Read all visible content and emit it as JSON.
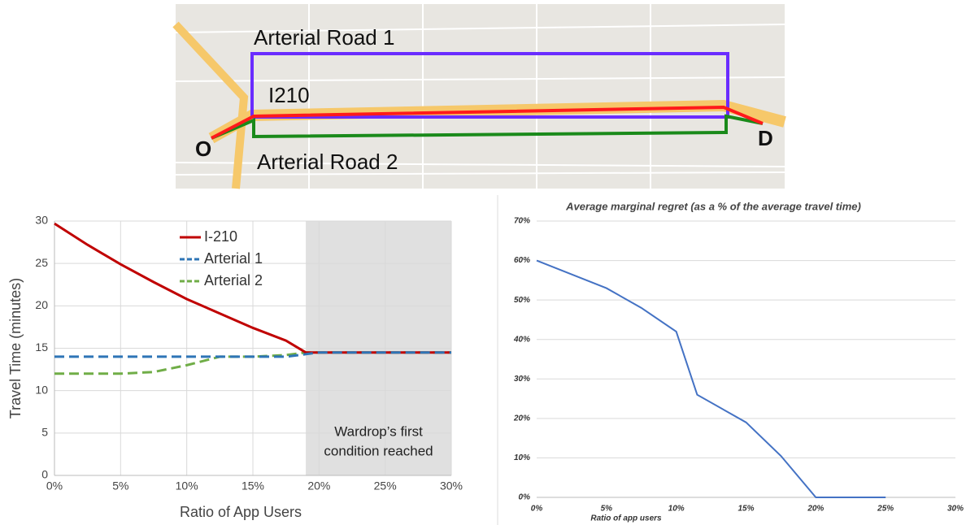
{
  "map": {
    "labels": [
      "Arterial Road 1",
      "I210",
      "Arterial Road 2",
      "O",
      "D"
    ]
  },
  "chart_data": [
    {
      "type": "line",
      "xlabel": "Ratio of App Users",
      "ylabel": "Travel Time (minutes)",
      "x": [
        0,
        2.5,
        5,
        7.5,
        10,
        12.5,
        15,
        17.5,
        19,
        20,
        25,
        30
      ],
      "series": [
        {
          "name": "Arterial 2",
          "color": "#70ad47",
          "style": "dashed",
          "values": [
            12,
            12,
            12,
            12.2,
            13,
            14,
            14,
            14.2,
            14.5,
            14.5,
            14.5,
            14.5
          ]
        },
        {
          "name": "I-210",
          "color": "#c00000",
          "style": "solid",
          "values": [
            29.7,
            27.2,
            24.9,
            22.8,
            20.8,
            19.1,
            17.4,
            15.9,
            14.5,
            14.5,
            14.5,
            14.5
          ]
        },
        {
          "name": "Arterial 1",
          "color": "#2e75b6",
          "style": "dashed",
          "values": [
            14,
            14,
            14,
            14,
            14,
            14,
            14,
            14,
            14.3,
            14.5,
            14.5,
            14.5
          ]
        }
      ],
      "legend_order": [
        "I-210",
        "Arterial 1",
        "Arterial 2"
      ],
      "legend": "upper center",
      "xlim": [
        0,
        30
      ],
      "ylim": [
        0,
        30
      ],
      "xticks": [
        {
          "value": 0,
          "label": "0%"
        },
        {
          "value": 5,
          "label": "5%"
        },
        {
          "value": 10,
          "label": "10%"
        },
        {
          "value": 15,
          "label": "15%"
        },
        {
          "value": 20,
          "label": "20%"
        },
        {
          "value": 25,
          "label": "25%"
        },
        {
          "value": 30,
          "label": "30%"
        }
      ],
      "yticks": [
        0,
        5,
        10,
        15,
        20,
        25,
        30
      ],
      "grid": true,
      "shaded_xrange": [
        19,
        30
      ],
      "annotation": [
        "Wardrop’s first",
        "condition reached"
      ]
    },
    {
      "type": "line",
      "title": "Average marginal regret (as a % of the average travel time)",
      "xlabel": "Ratio of app users",
      "x": [
        0,
        2.5,
        5,
        7.5,
        10,
        11.5,
        15,
        17.5,
        20,
        25
      ],
      "series": [
        {
          "color": "#4472c4",
          "style": "solid",
          "values": [
            60,
            56.5,
            53,
            48,
            42,
            26,
            19,
            10.5,
            0,
            0
          ]
        }
      ],
      "xlim": [
        0,
        30
      ],
      "ylim": [
        0,
        70
      ],
      "xticks": [
        {
          "value": 0,
          "label": "0%"
        },
        {
          "value": 5,
          "label": "5%"
        },
        {
          "value": 10,
          "label": "10%"
        },
        {
          "value": 15,
          "label": "15%"
        },
        {
          "value": 20,
          "label": "20%"
        },
        {
          "value": 25,
          "label": "25%"
        },
        {
          "value": 30,
          "label": "30%"
        }
      ],
      "yticks": [
        {
          "value": 0,
          "label": "0%"
        },
        {
          "value": 10,
          "label": "10%"
        },
        {
          "value": 20,
          "label": "20%"
        },
        {
          "value": 30,
          "label": "30%"
        },
        {
          "value": 40,
          "label": "40%"
        },
        {
          "value": 50,
          "label": "50%"
        },
        {
          "value": 60,
          "label": "60%"
        },
        {
          "value": 70,
          "label": "70%"
        }
      ],
      "grid": true
    }
  ]
}
